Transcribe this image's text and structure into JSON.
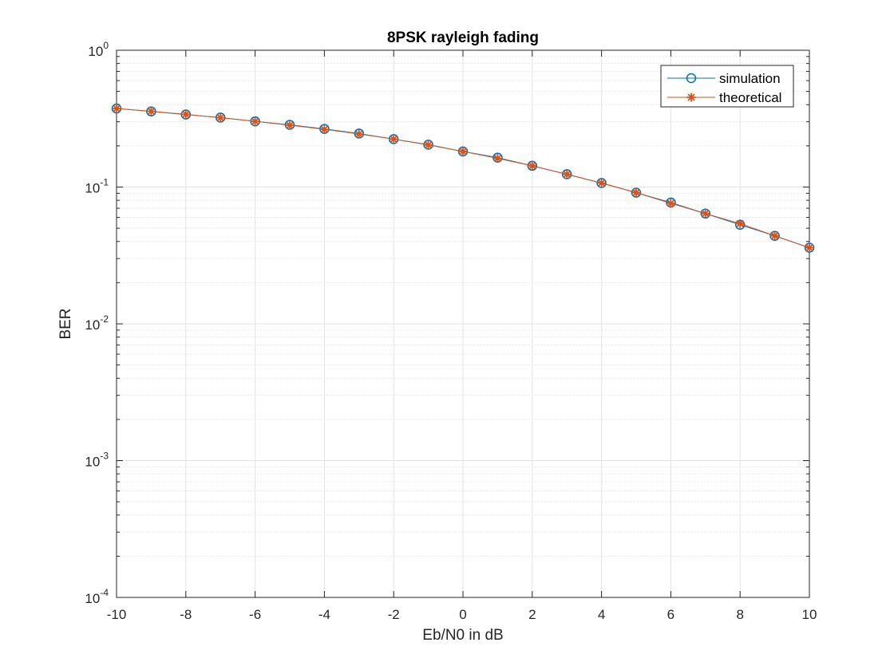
{
  "chart_data": {
    "type": "line",
    "title": "8PSK rayleigh fading",
    "xlabel": "Eb/N0 in dB",
    "ylabel": "BER",
    "xlim": [
      -10,
      10
    ],
    "ylim": [
      0.0001,
      1
    ],
    "yscale": "log",
    "grid": true,
    "legend_position": "top-right",
    "x_ticks": [
      -10,
      -8,
      -6,
      -4,
      -2,
      0,
      2,
      4,
      6,
      8,
      10
    ],
    "x_tick_labels": [
      "-10",
      "-8",
      "-6",
      "-4",
      "-2",
      "0",
      "2",
      "4",
      "6",
      "8",
      "10"
    ],
    "y_ticks": [
      {
        "value": 0.0001,
        "base": "10",
        "exp": "-4"
      },
      {
        "value": 0.001,
        "base": "10",
        "exp": "-3"
      },
      {
        "value": 0.01,
        "base": "10",
        "exp": "-2"
      },
      {
        "value": 0.1,
        "base": "10",
        "exp": "-1"
      },
      {
        "value": 1,
        "base": "10",
        "exp": "0"
      }
    ],
    "x": [
      -10,
      -9,
      -8,
      -7,
      -6,
      -5,
      -4,
      -3,
      -2,
      -1,
      0,
      1,
      2,
      3,
      4,
      5,
      6,
      7,
      8,
      9,
      10
    ],
    "series": [
      {
        "name": "simulation",
        "color": "#0072BD",
        "marker": "circle",
        "values": [
          0.375,
          0.357,
          0.339,
          0.322,
          0.302,
          0.285,
          0.266,
          0.246,
          0.224,
          0.204,
          0.182,
          0.164,
          0.143,
          0.124,
          0.107,
          0.091,
          0.077,
          0.064,
          0.053,
          0.044,
          0.036
        ]
      },
      {
        "name": "theoretical",
        "color": "#D95319",
        "marker": "star",
        "values": [
          0.375,
          0.358,
          0.34,
          0.321,
          0.302,
          0.283,
          0.264,
          0.244,
          0.224,
          0.203,
          0.182,
          0.162,
          0.143,
          0.124,
          0.107,
          0.091,
          0.076,
          0.064,
          0.054,
          0.044,
          0.036
        ]
      }
    ]
  }
}
